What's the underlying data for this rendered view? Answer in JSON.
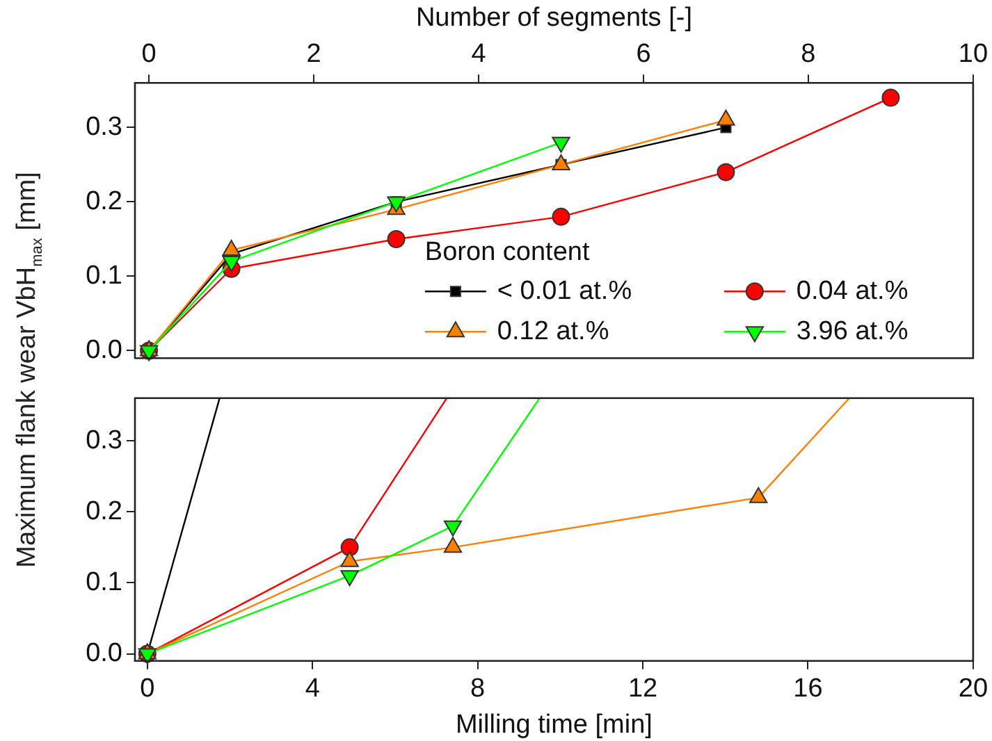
{
  "chart_data": [
    {
      "type": "line",
      "xlabel": "Number of segments [-]",
      "ylabel": "Maximum flank wear VbH$_{max}$ [mm]",
      "legend_title": "Boron content",
      "legend": "bottom right",
      "grid": false,
      "xlim": [
        -0.17,
        10
      ],
      "xticks": [
        0,
        2,
        4,
        6,
        8,
        10
      ],
      "ylim": [
        -0.01,
        0.36
      ],
      "yticks": [
        {
          "value": 0,
          "label": "0.0"
        },
        0.1,
        0.2,
        0.3
      ],
      "series": [
        {
          "name": "< 0.01 at.%",
          "color": "#000000",
          "marker": "square",
          "x": [
            0,
            1,
            3,
            5,
            7
          ],
          "values": [
            0,
            0.13,
            0.2,
            0.25,
            0.3
          ]
        },
        {
          "name": "0.04 at.%",
          "color": "#ff0000",
          "marker": "circle",
          "x": [
            0,
            1,
            3,
            5,
            7,
            9
          ],
          "values": [
            0,
            0.11,
            0.15,
            0.18,
            0.24,
            0.34
          ]
        },
        {
          "name": "0.12 at.%",
          "color": "#ff8000",
          "marker": "triangle",
          "x": [
            0,
            1,
            3,
            5,
            7
          ],
          "values": [
            0,
            0.135,
            0.19,
            0.25,
            0.31
          ]
        },
        {
          "name": "3.96 at.%",
          "color": "#00ff00",
          "marker": "triangle-down",
          "x": [
            0,
            1,
            3,
            5
          ],
          "values": [
            0,
            0.12,
            0.2,
            0.28
          ]
        }
      ]
    },
    {
      "type": "line",
      "xlabel": "Milling time [min]",
      "grid": false,
      "legend": false,
      "xlim": [
        -0.3,
        20
      ],
      "xticks": [
        0,
        4,
        8,
        12,
        16,
        20
      ],
      "ylim": [
        -0.01,
        0.36
      ],
      "yticks": [
        {
          "value": 0,
          "label": "0.0"
        },
        0.1,
        0.2,
        0.3
      ],
      "series": [
        {
          "color": "#000000",
          "marker": "square",
          "x": [
            0,
            1.75
          ],
          "values": [
            0,
            0.36
          ]
        },
        {
          "color": "#ff0000",
          "marker": "circle",
          "x": [
            0,
            4.9,
            7.25
          ],
          "values": [
            0,
            0.15,
            0.36
          ]
        },
        {
          "color": "#ff8000",
          "marker": "triangle",
          "x": [
            0,
            4.9,
            7.4,
            14.8,
            17.0
          ],
          "values": [
            0,
            0.13,
            0.15,
            0.22,
            0.36
          ]
        },
        {
          "color": "#00ff00",
          "marker": "triangle-down",
          "x": [
            0,
            4.9,
            7.4,
            9.5
          ],
          "values": [
            0,
            0.11,
            0.18,
            0.36
          ]
        }
      ]
    }
  ]
}
